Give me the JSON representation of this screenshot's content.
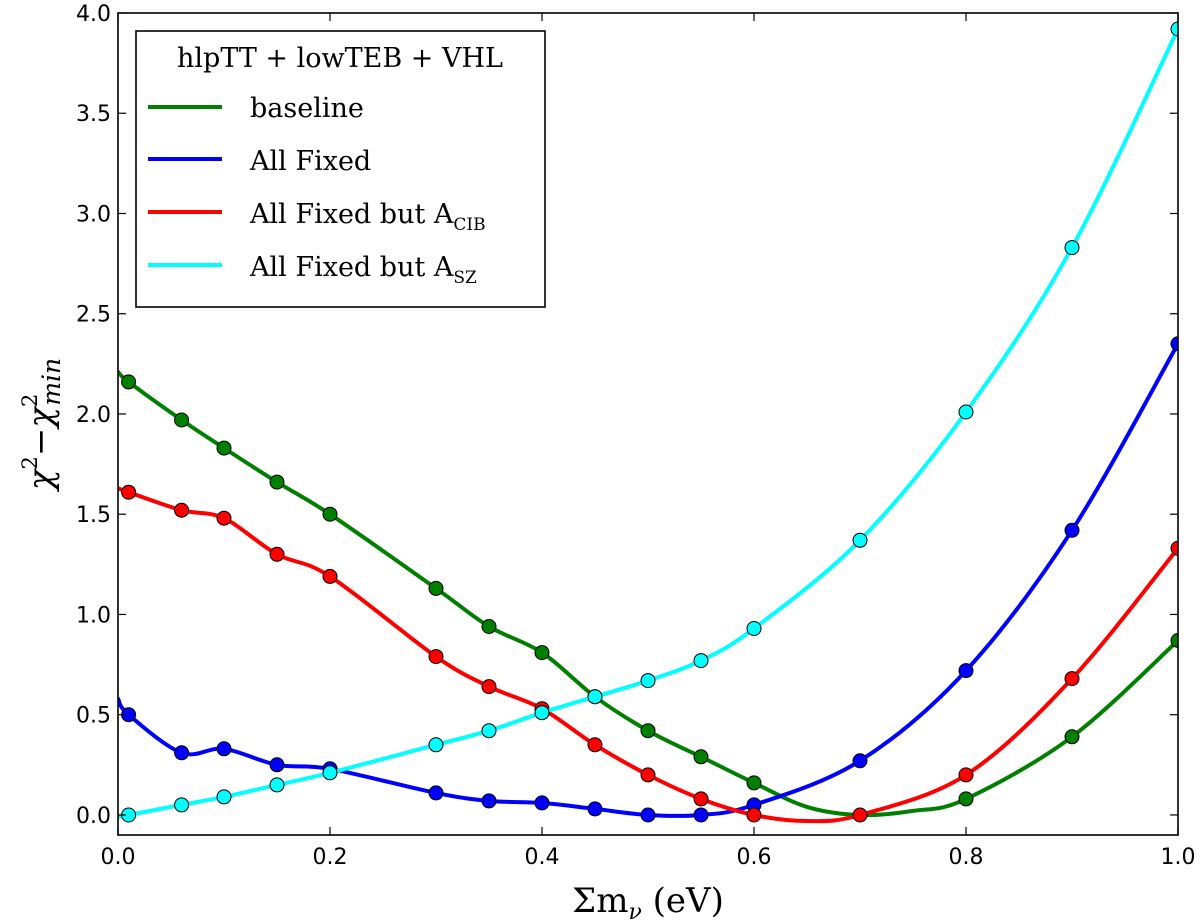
{
  "chart_data": {
    "type": "line",
    "xlabel": "Σm",
    "xlabel_sub": "ν",
    "xlabel_unit": "(eV)",
    "ylabel_chi": "χ",
    "ylabel_sup": "2",
    "ylabel_minus": "−",
    "ylabel_sub": "min",
    "xlim": [
      0.0,
      1.0
    ],
    "ylim": [
      -0.1,
      4.0
    ],
    "xticks": [
      "0.0",
      "0.2",
      "0.4",
      "0.6",
      "0.8",
      "1.0"
    ],
    "yticks": [
      "0.0",
      "0.5",
      "1.0",
      "1.5",
      "2.0",
      "2.5",
      "3.0",
      "3.5",
      "4.0"
    ],
    "legend_title": "hlpTT + lowTEB + VHL",
    "legend_position": "top-left",
    "series": [
      {
        "name": "baseline",
        "name_main": "baseline",
        "name_sub": "",
        "color": "#007f00",
        "points_x": [
          0.01,
          0.06,
          0.1,
          0.15,
          0.2,
          0.3,
          0.35,
          0.4,
          0.45,
          0.5,
          0.55,
          0.6,
          0.8,
          0.9,
          1.0
        ],
        "points_y": [
          2.16,
          1.97,
          1.83,
          1.66,
          1.5,
          1.13,
          0.94,
          0.81,
          0.59,
          0.42,
          0.29,
          0.16,
          0.08,
          0.39,
          0.87
        ],
        "curve_x": [
          0.0,
          0.01,
          0.06,
          0.1,
          0.15,
          0.2,
          0.3,
          0.35,
          0.4,
          0.45,
          0.5,
          0.55,
          0.6,
          0.65,
          0.7,
          0.75,
          0.8,
          0.9,
          1.0
        ],
        "curve_y": [
          2.21,
          2.16,
          1.97,
          1.83,
          1.66,
          1.5,
          1.13,
          0.94,
          0.81,
          0.59,
          0.42,
          0.29,
          0.16,
          0.04,
          0.0,
          0.02,
          0.08,
          0.39,
          0.87
        ]
      },
      {
        "name": "All Fixed",
        "name_main": "All Fixed",
        "name_sub": "",
        "color": "#0000ff",
        "points_x": [
          0.01,
          0.06,
          0.1,
          0.15,
          0.2,
          0.3,
          0.35,
          0.4,
          0.45,
          0.5,
          0.55,
          0.6,
          0.7,
          0.8,
          0.9,
          1.0
        ],
        "points_y": [
          0.5,
          0.31,
          0.33,
          0.25,
          0.23,
          0.11,
          0.07,
          0.06,
          0.03,
          0.0,
          0.0,
          0.05,
          0.27,
          0.72,
          1.42,
          2.35
        ],
        "curve_x": [
          0.0,
          0.01,
          0.06,
          0.1,
          0.15,
          0.2,
          0.3,
          0.35,
          0.4,
          0.45,
          0.5,
          0.55,
          0.6,
          0.7,
          0.8,
          0.9,
          1.0
        ],
        "curve_y": [
          0.58,
          0.5,
          0.31,
          0.33,
          0.25,
          0.23,
          0.11,
          0.07,
          0.06,
          0.03,
          0.0,
          0.0,
          0.05,
          0.27,
          0.72,
          1.42,
          2.35
        ]
      },
      {
        "name": "All Fixed but A_CIB",
        "name_main": "All Fixed but A",
        "name_sub": "CIB",
        "color": "#ff0000",
        "points_x": [
          0.01,
          0.06,
          0.1,
          0.15,
          0.2,
          0.3,
          0.35,
          0.4,
          0.45,
          0.5,
          0.55,
          0.6,
          0.7,
          0.8,
          0.9,
          1.0
        ],
        "points_y": [
          1.61,
          1.52,
          1.48,
          1.3,
          1.19,
          0.79,
          0.64,
          0.53,
          0.35,
          0.2,
          0.08,
          0.0,
          0.0,
          0.2,
          0.68,
          1.33
        ],
        "curve_x": [
          0.0,
          0.01,
          0.06,
          0.1,
          0.15,
          0.2,
          0.3,
          0.35,
          0.4,
          0.45,
          0.5,
          0.55,
          0.6,
          0.65,
          0.7,
          0.8,
          0.9,
          1.0
        ],
        "curve_y": [
          1.63,
          1.61,
          1.52,
          1.48,
          1.3,
          1.19,
          0.79,
          0.64,
          0.53,
          0.35,
          0.2,
          0.08,
          0.0,
          -0.03,
          0.0,
          0.2,
          0.68,
          1.33
        ]
      },
      {
        "name": "All Fixed but A_SZ",
        "name_main": "All Fixed but A",
        "name_sub": "SZ",
        "color": "#00ffff",
        "points_x": [
          0.01,
          0.06,
          0.1,
          0.15,
          0.2,
          0.3,
          0.35,
          0.4,
          0.45,
          0.5,
          0.55,
          0.6,
          0.7,
          0.8,
          0.9,
          1.0
        ],
        "points_y": [
          0.0,
          0.05,
          0.09,
          0.15,
          0.21,
          0.35,
          0.42,
          0.51,
          0.59,
          0.67,
          0.77,
          0.93,
          1.37,
          2.01,
          2.83,
          3.92
        ],
        "curve_x": [
          0.0,
          0.01,
          0.06,
          0.1,
          0.15,
          0.2,
          0.3,
          0.35,
          0.4,
          0.45,
          0.5,
          0.55,
          0.6,
          0.7,
          0.8,
          0.9,
          1.0
        ],
        "curve_y": [
          -0.01,
          0.0,
          0.05,
          0.09,
          0.15,
          0.21,
          0.35,
          0.42,
          0.51,
          0.59,
          0.67,
          0.77,
          0.93,
          1.37,
          2.01,
          2.83,
          3.92
        ]
      }
    ]
  }
}
